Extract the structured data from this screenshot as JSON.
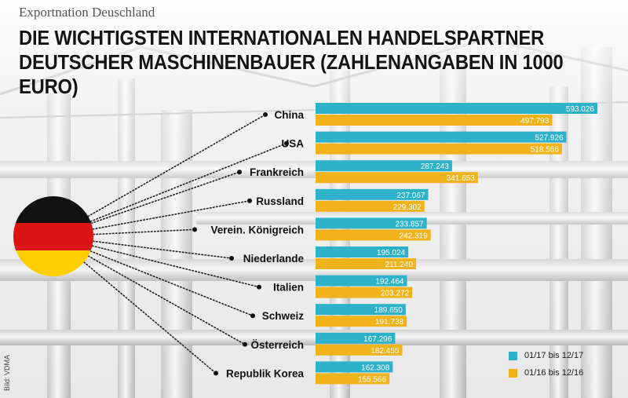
{
  "header": {
    "kicker": "Exportnation Deuschland",
    "title": "DIE WICHTIGSTEN INTERNATIONALEN HANDELSPARTNER DEUTSCHER MASCHINENBAUER (ZAHLENANGABEN IN 1000 EURO)"
  },
  "credit": "Bild: VDMA",
  "colors": {
    "series_2017": "#2db2c9",
    "series_2016": "#f0b31c",
    "flag_black": "#121212",
    "flag_red": "#dd1414",
    "flag_gold": "#ffce00"
  },
  "chart_data": {
    "type": "bar",
    "orientation": "horizontal",
    "title": "DIE WICHTIGSTEN INTERNATIONALEN HANDELSPARTNER DEUTSCHER MASCHINENBAUER (ZAHLENANGABEN IN 1000 EURO)",
    "categories": [
      "China",
      "USA",
      "Frankreich",
      "Russland",
      "Verein. Königreich",
      "Niederlande",
      "Italien",
      "Schweiz",
      "Österreich",
      "Republik Korea"
    ],
    "series": [
      {
        "name": "01/17 bis 12/17",
        "values": [
          593026,
          527926,
          287243,
          237067,
          233857,
          195024,
          192464,
          189650,
          167296,
          162308
        ],
        "labels": [
          "593.026",
          "527.926",
          "287.243",
          "237.067",
          "233.857",
          "195.024",
          "192.464",
          "189.650",
          "167.296",
          "162.308"
        ]
      },
      {
        "name": "01/16 bis 12/16",
        "values": [
          497793,
          518566,
          341653,
          229302,
          242319,
          211240,
          203272,
          191738,
          182455,
          155566
        ],
        "labels": [
          "497.793",
          "518.566",
          "341.653",
          "229.302",
          "242.319",
          "211.240",
          "203.272",
          "191.738",
          "182.455",
          "155.566"
        ]
      }
    ],
    "legend_position": "bottom-right",
    "grid": false
  }
}
